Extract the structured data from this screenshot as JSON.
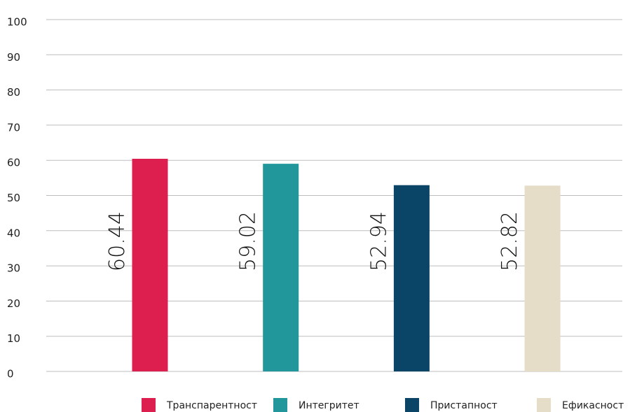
{
  "chart_data": {
    "type": "bar",
    "series": [
      {
        "name": "Транспарентност",
        "color": "#dc1f4f",
        "values": [
          60.44
        ]
      },
      {
        "name": "Интегритет",
        "color": "#21979c",
        "values": [
          59.02
        ]
      },
      {
        "name": "Пристапност",
        "color": "#0a4466",
        "values": [
          52.94
        ]
      },
      {
        "name": "Ефикасност",
        "color": "#e5ddc8",
        "values": [
          52.82
        ]
      }
    ],
    "ylim": [
      0,
      100
    ],
    "yticks": [
      0,
      10,
      20,
      30,
      40,
      50,
      60,
      70,
      80,
      90,
      100
    ],
    "grid": true,
    "legend": "bottom"
  }
}
